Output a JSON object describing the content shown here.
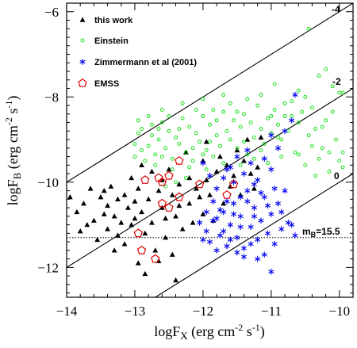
{
  "chart_data": {
    "type": "scatter",
    "title": "",
    "xlabel_main": "logF",
    "xlabel_sub": "X",
    "xlabel_rest": " (erg cm",
    "xlabel_exp1": "-2",
    "xlabel_mid": " s",
    "xlabel_exp2": "-1",
    "xlabel_end": ")",
    "ylabel_main": "logF",
    "ylabel_sub": "B",
    "ylabel_rest": " (erg cm",
    "ylabel_exp1": "-2",
    "ylabel_mid": " s",
    "ylabel_exp2": "-1",
    "ylabel_end": ")",
    "xlim": [
      -14,
      -9.8
    ],
    "ylim": [
      -12.7,
      -5.8
    ],
    "x_ticks": [
      -14,
      -13,
      -12,
      -11,
      -10
    ],
    "x_tick_labels": [
      "−14",
      "−13",
      "−12",
      "−11",
      "−10"
    ],
    "y_ticks": [
      -12,
      -10,
      -8,
      -6
    ],
    "y_tick_labels": [
      "−12",
      "−10",
      "−8",
      "−6"
    ],
    "legend_position": "top-left",
    "reference_lines": [
      {
        "label": "-4",
        "x": [
          -14,
          -9.8
        ],
        "y": [
          -10.0,
          -5.8
        ]
      },
      {
        "label": "-2",
        "x": [
          -14,
          -9.8
        ],
        "y": [
          -12.0,
          -7.8
        ]
      },
      {
        "label": "0",
        "x": [
          -12.7,
          -9.8
        ],
        "y": [
          -12.7,
          -9.8
        ]
      }
    ],
    "limit_line": {
      "y": -11.3,
      "label_main": "m",
      "label_sub": "B",
      "label_rest": "=15.5"
    },
    "series": [
      {
        "name": "this work",
        "marker": "triangle",
        "color": "#000000",
        "points": [
          [
            -13.95,
            -10.35
          ],
          [
            -13.85,
            -10.7
          ],
          [
            -13.75,
            -10.5
          ],
          [
            -13.6,
            -10.9
          ],
          [
            -13.5,
            -10.35
          ],
          [
            -13.45,
            -10.2
          ],
          [
            -13.4,
            -10.55
          ],
          [
            -13.4,
            -11.1
          ],
          [
            -13.35,
            -10.1
          ],
          [
            -13.3,
            -10.8
          ],
          [
            -13.25,
            -10.4
          ],
          [
            -13.2,
            -10.95
          ],
          [
            -13.15,
            -10.3
          ],
          [
            -13.1,
            -10.6
          ],
          [
            -13.05,
            -11.0
          ],
          [
            -13.0,
            -10.45
          ],
          [
            -13.0,
            -10.85
          ],
          [
            -12.95,
            -10.15
          ],
          [
            -12.9,
            -10.7
          ],
          [
            -12.85,
            -11.2
          ],
          [
            -12.8,
            -10.4
          ],
          [
            -12.75,
            -10.95
          ],
          [
            -12.7,
            -11.6
          ],
          [
            -12.65,
            -10.2
          ],
          [
            -12.6,
            -10.6
          ],
          [
            -12.55,
            -11.3
          ],
          [
            -12.5,
            -9.7
          ],
          [
            -12.45,
            -10.3
          ],
          [
            -12.4,
            -10.8
          ],
          [
            -12.35,
            -10.05
          ],
          [
            -12.3,
            -11.1
          ],
          [
            -12.25,
            -9.3
          ],
          [
            -12.2,
            -10.5
          ],
          [
            -12.15,
            -10.95
          ],
          [
            -12.1,
            -10.15
          ],
          [
            -12.0,
            -9.5
          ],
          [
            -12.0,
            -10.75
          ],
          [
            -11.95,
            -9.05
          ],
          [
            -11.9,
            -10.3
          ],
          [
            -11.85,
            -10.9
          ],
          [
            -11.8,
            -9.75
          ],
          [
            -11.75,
            -9.4
          ],
          [
            -11.7,
            -10.5
          ],
          [
            -11.65,
            -9.6
          ],
          [
            -11.6,
            -10.1
          ],
          [
            -11.55,
            -9.85
          ],
          [
            -11.5,
            -9.25
          ],
          [
            -11.45,
            -10.3
          ],
          [
            -11.4,
            -9.5
          ],
          [
            -11.35,
            -9.0
          ],
          [
            -11.3,
            -9.8
          ],
          [
            -11.25,
            -10.15
          ],
          [
            -11.2,
            -9.65
          ],
          [
            -11.15,
            -8.95
          ],
          [
            -12.85,
            -12.15
          ],
          [
            -12.4,
            -12.3
          ],
          [
            -12.95,
            -11.9
          ],
          [
            -13.3,
            -11.6
          ],
          [
            -13.55,
            -11.35
          ],
          [
            -13.7,
            -11.0
          ],
          [
            -12.6,
            -9.95
          ],
          [
            -12.75,
            -9.75
          ],
          [
            -12.9,
            -9.6
          ],
          [
            -13.05,
            -9.9
          ],
          [
            -12.2,
            -9.9
          ],
          [
            -12.05,
            -10.35
          ],
          [
            -11.95,
            -9.95
          ],
          [
            -13.15,
            -11.45
          ],
          [
            -12.45,
            -11.7
          ],
          [
            -12.65,
            -11.85
          ],
          [
            -13.45,
            -10.75
          ],
          [
            -12.55,
            -10.85
          ],
          [
            -12.35,
            -10.55
          ],
          [
            -13.65,
            -10.15
          ],
          [
            -13.8,
            -11.15
          ],
          [
            -13.25,
            -11.25
          ]
        ]
      },
      {
        "name": "Einstein",
        "marker": "circle",
        "color": "#00dd00",
        "points": [
          [
            -12.95,
            -8.55
          ],
          [
            -12.9,
            -8.75
          ],
          [
            -12.8,
            -9.15
          ],
          [
            -12.75,
            -8.9
          ],
          [
            -12.7,
            -9.35
          ],
          [
            -12.65,
            -9.0
          ],
          [
            -12.6,
            -8.6
          ],
          [
            -12.55,
            -9.2
          ],
          [
            -12.5,
            -8.8
          ],
          [
            -12.45,
            -9.45
          ],
          [
            -12.4,
            -8.95
          ],
          [
            -12.35,
            -9.1
          ],
          [
            -12.3,
            -8.5
          ],
          [
            -12.25,
            -9.3
          ],
          [
            -12.2,
            -8.7
          ],
          [
            -12.15,
            -9.5
          ],
          [
            -12.1,
            -8.85
          ],
          [
            -12.05,
            -9.05
          ],
          [
            -12.0,
            -8.45
          ],
          [
            -11.95,
            -9.25
          ],
          [
            -11.9,
            -8.65
          ],
          [
            -11.85,
            -9.4
          ],
          [
            -11.8,
            -8.9
          ],
          [
            -11.75,
            -9.15
          ],
          [
            -11.7,
            -8.35
          ],
          [
            -11.65,
            -8.8
          ],
          [
            -11.6,
            -9.0
          ],
          [
            -11.55,
            -8.55
          ],
          [
            -11.5,
            -9.2
          ],
          [
            -11.45,
            -8.7
          ],
          [
            -11.4,
            -8.4
          ],
          [
            -11.35,
            -9.35
          ],
          [
            -11.3,
            -8.6
          ],
          [
            -11.25,
            -8.95
          ],
          [
            -11.2,
            -8.2
          ],
          [
            -11.15,
            -8.75
          ],
          [
            -11.1,
            -9.1
          ],
          [
            -11.05,
            -8.5
          ],
          [
            -11.0,
            -8.85
          ],
          [
            -10.95,
            -8.3
          ],
          [
            -10.9,
            -8.65
          ],
          [
            -10.85,
            -9.0
          ],
          [
            -10.8,
            -8.15
          ],
          [
            -10.75,
            -8.8
          ],
          [
            -10.7,
            -8.45
          ],
          [
            -10.65,
            -9.3
          ],
          [
            -10.6,
            -8.6
          ],
          [
            -10.5,
            -8.0
          ],
          [
            -10.45,
            -8.9
          ],
          [
            -10.4,
            -9.15
          ],
          [
            -10.35,
            -8.75
          ],
          [
            -10.3,
            -9.45
          ],
          [
            -10.25,
            -9.2
          ],
          [
            -10.2,
            -8.55
          ],
          [
            -10.1,
            -8.35
          ],
          [
            -10.05,
            -9.0
          ],
          [
            -10.0,
            -7.9
          ],
          [
            -10.3,
            -7.5
          ],
          [
            -10.1,
            -7.75
          ],
          [
            -10.2,
            -7.35
          ],
          [
            -9.95,
            -7.9
          ],
          [
            -10.0,
            -9.5
          ],
          [
            -9.95,
            -9.65
          ],
          [
            -10.6,
            -7.85
          ],
          [
            -10.95,
            -7.7
          ],
          [
            -11.15,
            -7.95
          ],
          [
            -10.8,
            -8.45
          ],
          [
            -12.6,
            -8.3
          ],
          [
            -12.3,
            -8.15
          ],
          [
            -12.0,
            -8.05
          ],
          [
            -11.7,
            -7.95
          ],
          [
            -11.85,
            -8.3
          ],
          [
            -12.85,
            -9.5
          ],
          [
            -12.9,
            -9.25
          ],
          [
            -13.0,
            -9.1
          ],
          [
            -12.7,
            -9.6
          ],
          [
            -12.45,
            -9.7
          ],
          [
            -12.2,
            -9.65
          ],
          [
            -11.95,
            -9.7
          ],
          [
            -11.7,
            -9.55
          ],
          [
            -11.45,
            -9.6
          ],
          [
            -11.25,
            -9.45
          ],
          [
            -11.05,
            -9.55
          ],
          [
            -10.85,
            -9.4
          ],
          [
            -12.4,
            -10.0
          ],
          [
            -12.55,
            -10.1
          ],
          [
            -12.25,
            -9.9
          ],
          [
            -12.1,
            -8.3
          ],
          [
            -11.6,
            -8.15
          ],
          [
            -11.35,
            -8.05
          ],
          [
            -12.5,
            -8.45
          ],
          [
            -12.75,
            -8.65
          ],
          [
            -12.8,
            -8.45
          ],
          [
            -13.0,
            -9.4
          ],
          [
            -11.5,
            -8.35
          ],
          [
            -11.0,
            -8.45
          ],
          [
            -10.7,
            -8.1
          ],
          [
            -10.55,
            -8.35
          ],
          [
            -10.25,
            -8.7
          ],
          [
            -10.15,
            -9.3
          ],
          [
            -10.4,
            -8.25
          ],
          [
            -11.9,
            -9.05
          ],
          [
            -12.15,
            -9.2
          ],
          [
            -12.35,
            -8.75
          ],
          [
            -12.6,
            -9.4
          ],
          [
            -12.0,
            -9.35
          ],
          [
            -11.8,
            -8.55
          ],
          [
            -11.4,
            -9.05
          ],
          [
            -11.15,
            -9.25
          ],
          [
            -10.9,
            -8.95
          ],
          [
            -10.6,
            -9.35
          ],
          [
            -10.5,
            -9.6
          ],
          [
            -10.35,
            -9.85
          ],
          [
            -10.15,
            -9.75
          ],
          [
            -9.95,
            -9.3
          ],
          [
            -10.45,
            -6.4
          ],
          [
            -12.95,
            -8.85
          ],
          [
            -12.65,
            -8.75
          ]
        ]
      },
      {
        "name": "Zimmermann et al (2001)",
        "marker": "star",
        "color": "#0000ee",
        "points": [
          [
            -11.95,
            -11.15
          ],
          [
            -11.9,
            -11.4
          ],
          [
            -11.85,
            -10.9
          ],
          [
            -11.8,
            -11.6
          ],
          [
            -11.75,
            -11.25
          ],
          [
            -11.7,
            -10.7
          ],
          [
            -11.65,
            -11.5
          ],
          [
            -11.6,
            -11.0
          ],
          [
            -11.55,
            -10.5
          ],
          [
            -11.5,
            -11.3
          ],
          [
            -11.45,
            -10.8
          ],
          [
            -11.4,
            -11.55
          ],
          [
            -11.35,
            -10.2
          ],
          [
            -11.3,
            -11.05
          ],
          [
            -11.25,
            -10.6
          ],
          [
            -11.2,
            -11.35
          ],
          [
            -11.15,
            -10.9
          ],
          [
            -11.1,
            -10.35
          ],
          [
            -11.05,
            -11.2
          ],
          [
            -11.0,
            -10.75
          ],
          [
            -10.95,
            -11.45
          ],
          [
            -10.9,
            -10.5
          ],
          [
            -10.85,
            -11.1
          ],
          [
            -10.8,
            -10.2
          ],
          [
            -10.75,
            -10.95
          ],
          [
            -10.7,
            -11.0
          ],
          [
            -10.65,
            -11.25
          ],
          [
            -11.5,
            -9.4
          ],
          [
            -11.6,
            -9.65
          ],
          [
            -11.7,
            -9.9
          ],
          [
            -11.8,
            -10.15
          ],
          [
            -11.4,
            -9.8
          ],
          [
            -11.3,
            -9.55
          ],
          [
            -11.2,
            -9.95
          ],
          [
            -11.1,
            -9.45
          ],
          [
            -11.0,
            -9.7
          ],
          [
            -10.9,
            -9.2
          ],
          [
            -10.8,
            -8.8
          ],
          [
            -10.7,
            -8.55
          ],
          [
            -10.65,
            -7.95
          ],
          [
            -11.25,
            -10.05
          ],
          [
            -11.45,
            -10.35
          ],
          [
            -11.55,
            -10.0
          ],
          [
            -11.65,
            -10.45
          ],
          [
            -11.75,
            -10.65
          ],
          [
            -11.85,
            -10.45
          ],
          [
            -11.95,
            -10.7
          ],
          [
            -11.9,
            -9.85
          ],
          [
            -12.0,
            -9.55
          ],
          [
            -11.1,
            -11.7
          ],
          [
            -11.0,
            -12.1
          ],
          [
            -11.2,
            -11.8
          ],
          [
            -11.3,
            -11.45
          ],
          [
            -11.4,
            -11.75
          ],
          [
            -11.5,
            -11.65
          ],
          [
            -11.6,
            -11.35
          ],
          [
            -11.7,
            -11.15
          ],
          [
            -11.8,
            -10.85
          ],
          [
            -11.35,
            -10.45
          ],
          [
            -11.05,
            -10.55
          ],
          [
            -10.95,
            -10.15
          ],
          [
            -10.85,
            -10.7
          ],
          [
            -11.15,
            -10.25
          ],
          [
            -11.25,
            -10.8
          ],
          [
            -11.45,
            -11.05
          ],
          [
            -11.55,
            -10.75
          ],
          [
            -12.0,
            -11.35
          ],
          [
            -12.05,
            -10.95
          ],
          [
            -11.65,
            -9.7
          ],
          [
            -11.35,
            -9.25
          ],
          [
            -11.0,
            -8.9
          ]
        ]
      },
      {
        "name": "EMSS",
        "marker": "pentagon",
        "color": "#dd0000",
        "points": [
          [
            -12.95,
            -11.2
          ],
          [
            -12.9,
            -11.6
          ],
          [
            -12.7,
            -11.8
          ],
          [
            -12.85,
            -9.95
          ],
          [
            -12.6,
            -10.0
          ],
          [
            -12.5,
            -9.85
          ],
          [
            -12.35,
            -9.5
          ],
          [
            -12.6,
            -10.5
          ],
          [
            -12.5,
            -10.6
          ],
          [
            -12.35,
            -10.35
          ],
          [
            -12.05,
            -10.05
          ],
          [
            -11.65,
            -10.3
          ],
          [
            -11.55,
            -10.05
          ],
          [
            -12.65,
            -9.9
          ]
        ]
      }
    ]
  }
}
